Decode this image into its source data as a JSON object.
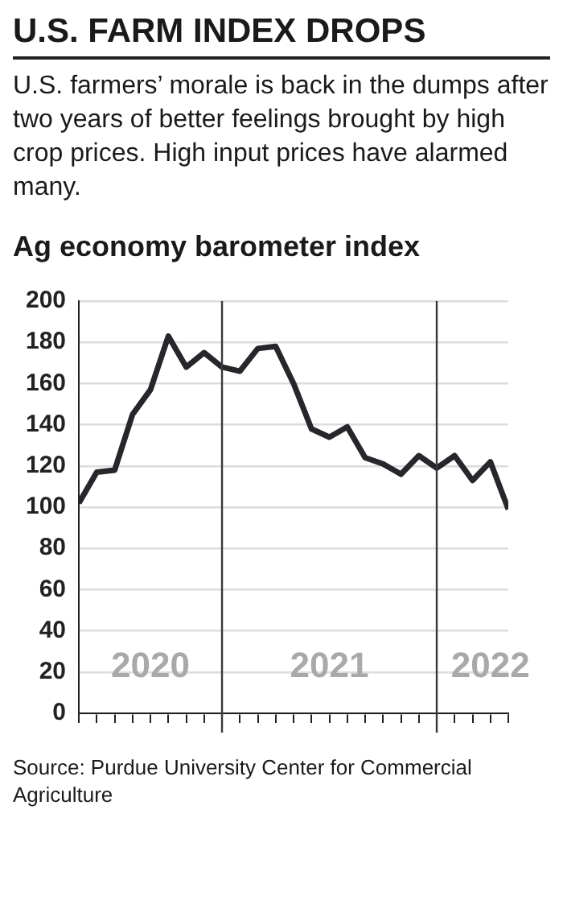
{
  "chart_data": {
    "type": "line",
    "title": "U.S. FARM INDEX DROPS",
    "subtitle": "U.S. farmers’ morale is back in the dumps after two years of better feelings brought by high crop prices. High input prices have alarmed many.",
    "ylabel": "Ag economy barometer index",
    "x": [
      "2020-05",
      "2020-06",
      "2020-07",
      "2020-08",
      "2020-09",
      "2020-10",
      "2020-11",
      "2020-12",
      "2021-01",
      "2021-02",
      "2021-03",
      "2021-04",
      "2021-05",
      "2021-06",
      "2021-07",
      "2021-08",
      "2021-09",
      "2021-10",
      "2021-11",
      "2021-12",
      "2022-01",
      "2022-02",
      "2022-03",
      "2022-04",
      "2022-05"
    ],
    "series": [
      {
        "color": "#26262b",
        "values": [
          102,
          117,
          118,
          145,
          157,
          183,
          168,
          175,
          168,
          166,
          177,
          178,
          160,
          138,
          134,
          139,
          124,
          121,
          116,
          125,
          119,
          125,
          113,
          122,
          99
        ]
      }
    ],
    "xlim": [
      "2020-05",
      "2022-05"
    ],
    "xticks": [
      {
        "value": "2020-05",
        "label": null
      },
      {
        "value": "2020-06",
        "label": null
      },
      {
        "value": "2020-07",
        "label": null
      },
      {
        "value": "2020-08",
        "label": null
      },
      {
        "value": "2020-09",
        "label": "2020"
      },
      {
        "value": "2020-10",
        "label": null
      },
      {
        "value": "2020-11",
        "label": null
      },
      {
        "value": "2020-12",
        "label": null
      },
      {
        "value": "2021-01",
        "label": null
      },
      {
        "value": "2021-02",
        "label": null
      },
      {
        "value": "2021-03",
        "label": null
      },
      {
        "value": "2021-04",
        "label": null
      },
      {
        "value": "2021-05",
        "label": null
      },
      {
        "value": "2021-06",
        "label": null
      },
      {
        "value": "2021-07",
        "label": "2021"
      },
      {
        "value": "2021-08",
        "label": null
      },
      {
        "value": "2021-09",
        "label": null
      },
      {
        "value": "2021-10",
        "label": null
      },
      {
        "value": "2021-11",
        "label": null
      },
      {
        "value": "2021-12",
        "label": null
      },
      {
        "value": "2022-01",
        "label": null
      },
      {
        "value": "2022-02",
        "label": null
      },
      {
        "value": "2022-03",
        "label": null
      },
      {
        "value": "2022-04",
        "label": "2022"
      },
      {
        "value": "2022-05",
        "label": null
      }
    ],
    "ylim": [
      0,
      200
    ],
    "yticks": [
      0,
      20,
      40,
      60,
      80,
      100,
      120,
      140,
      160,
      180,
      200
    ],
    "grid": "y",
    "marker": "none",
    "line_style": "solid",
    "ref_lines": [
      {
        "axis": "x",
        "value": "2021-01",
        "color": "#3a3a3a"
      },
      {
        "axis": "x",
        "value": "2022-01",
        "color": "#3a3a3a"
      }
    ],
    "annotations": [
      "Source: Purdue University Center for Commercial Agriculture"
    ]
  }
}
